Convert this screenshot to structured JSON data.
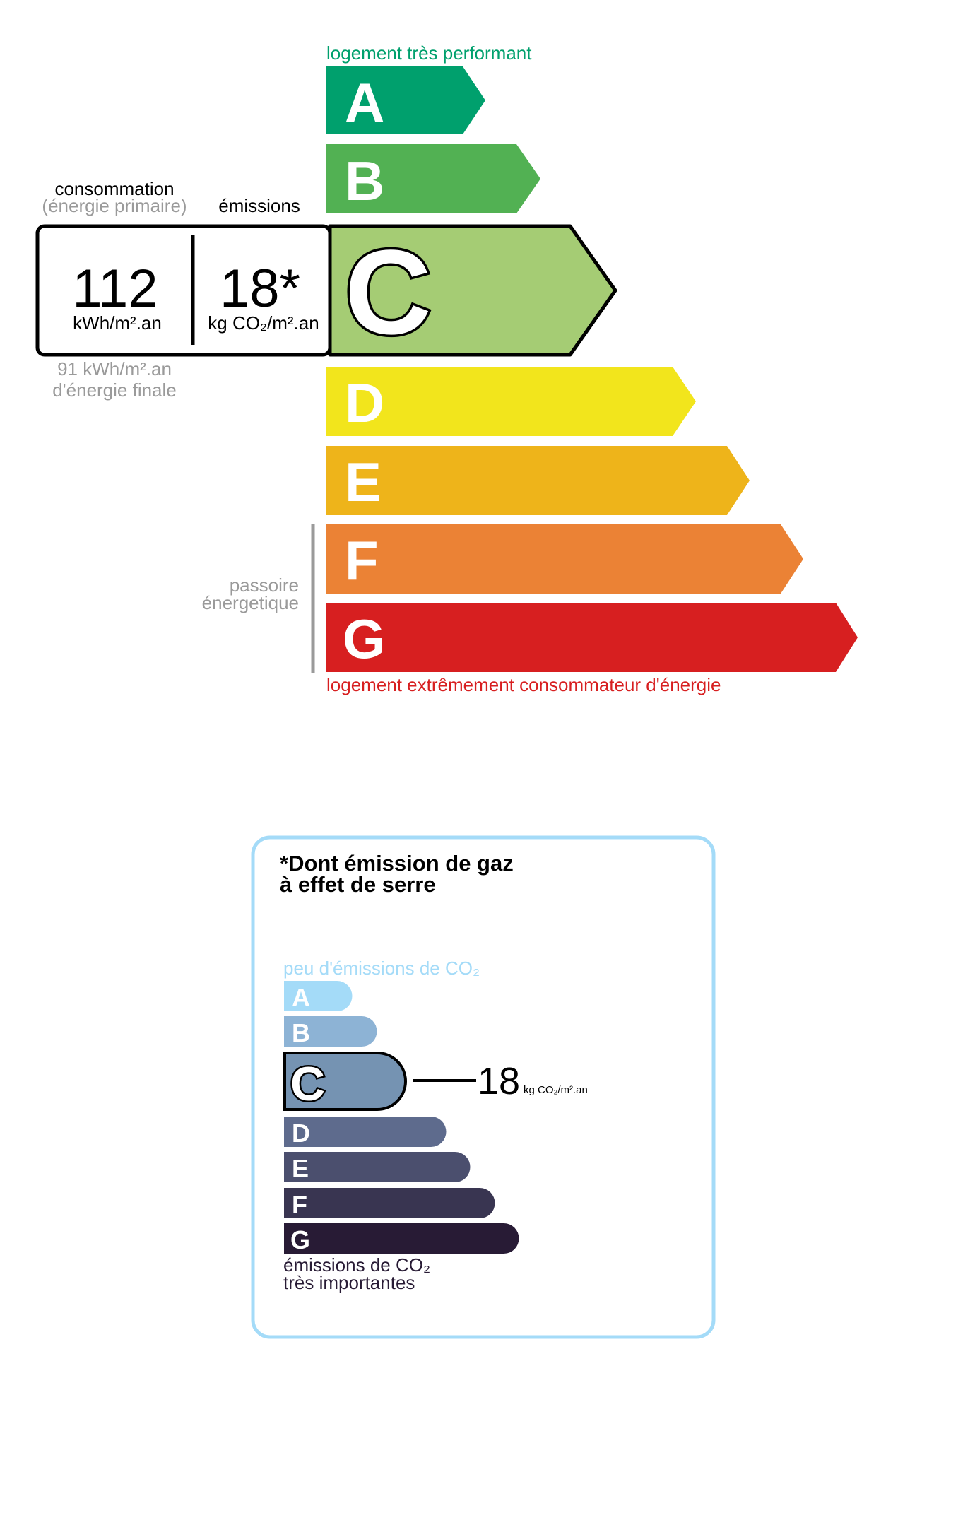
{
  "energy": {
    "top_label": "logement très performant",
    "bottom_label": "logement extrêmement consommateur d'énergie",
    "classes": [
      {
        "letter": "A",
        "color": "#00a06d"
      },
      {
        "letter": "B",
        "color": "#52b153"
      },
      {
        "letter": "C",
        "color": "#a5cc74"
      },
      {
        "letter": "D",
        "color": "#f2e51c"
      },
      {
        "letter": "E",
        "color": "#eeb41a"
      },
      {
        "letter": "F",
        "color": "#eb8235"
      },
      {
        "letter": "G",
        "color": "#d71f20"
      }
    ],
    "current_class": "C",
    "consumption_label": "consommation",
    "consumption_sublabel": "(énergie primaire)",
    "emissions_label": "émissions",
    "consumption_value": "112",
    "consumption_unit": "kWh/m².an",
    "emissions_value": "18*",
    "emissions_unit": "kg CO₂/m².an",
    "final_energy_line1": "91 kWh/m².an",
    "final_energy_line2": "d'énergie finale",
    "passoire_line1": "passoire",
    "passoire_line2": "énergetique",
    "top_label_color": "#00a06d",
    "bottom_label_color": "#d71f20"
  },
  "ges": {
    "title_line1": "*Dont émission de gaz",
    "title_line2": "à effet de serre",
    "top_label": "peu d'émissions de CO₂",
    "bottom_label_line1": "émissions de CO₂",
    "bottom_label_line2": "très importantes",
    "classes": [
      {
        "letter": "A",
        "color": "#a4dbf8"
      },
      {
        "letter": "B",
        "color": "#8db3d5"
      },
      {
        "letter": "C",
        "color": "#7593b2"
      },
      {
        "letter": "D",
        "color": "#5e6b8d"
      },
      {
        "letter": "E",
        "color": "#4b4f6e"
      },
      {
        "letter": "F",
        "color": "#393551"
      },
      {
        "letter": "G",
        "color": "#281b35"
      }
    ],
    "current_class": "C",
    "value": "18",
    "unit": "kg CO₂/m².an",
    "border_color": "#a4dbf8"
  }
}
